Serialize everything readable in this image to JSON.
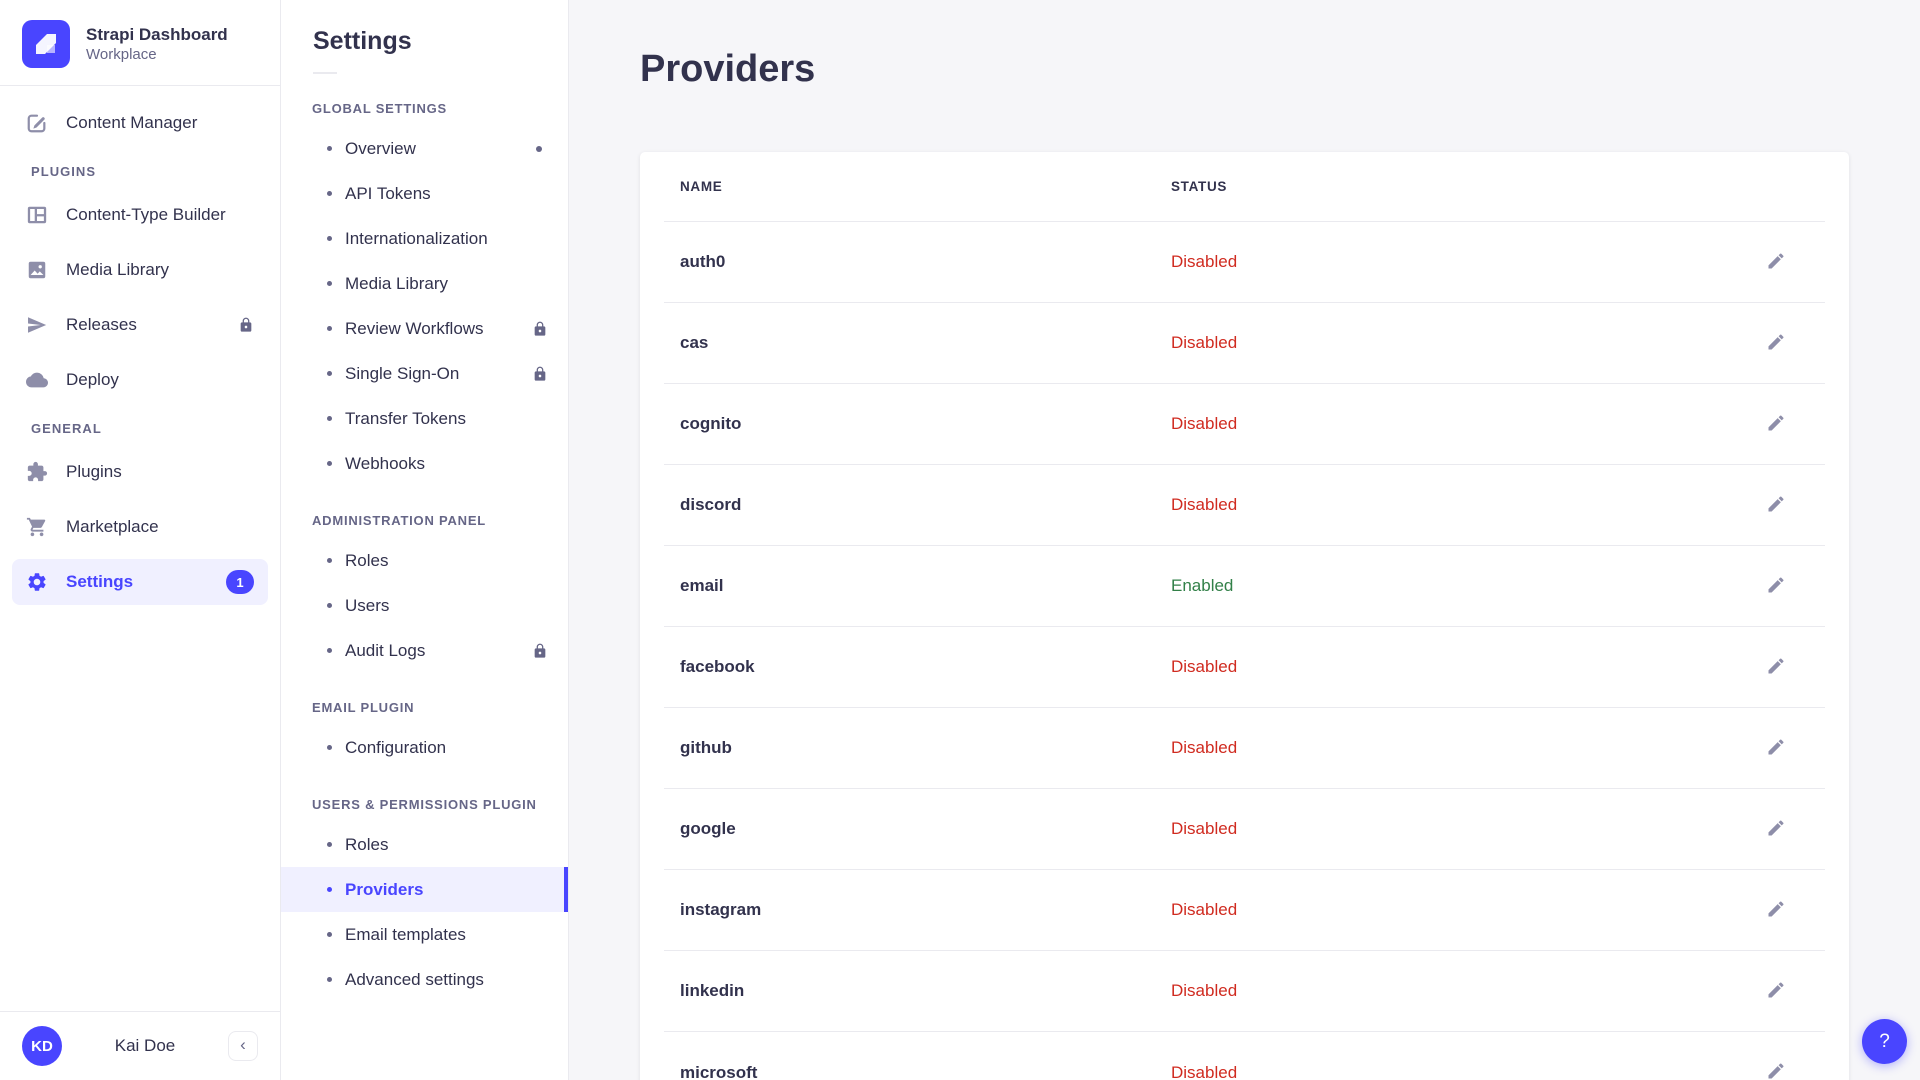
{
  "brand": {
    "title": "Strapi Dashboard",
    "subtitle": "Workplace"
  },
  "user": {
    "initials": "KD",
    "name": "Kai Doe",
    "collapse_icon": "chevron-left"
  },
  "colors": {
    "primary": "#4945ff",
    "primary_bg": "#f0f0ff",
    "success": "#328048",
    "danger": "#d02b20",
    "text": "#32324d",
    "muted": "#666687",
    "icon": "#8e8ea9",
    "border": "#eaeaef",
    "page_bg": "#f6f6f9"
  },
  "sidebar": {
    "sections": [
      {
        "label": "",
        "items": [
          {
            "label": "Content Manager",
            "icon": "content-manager-icon"
          }
        ]
      },
      {
        "label": "PLUGINS",
        "items": [
          {
            "label": "Content-Type Builder",
            "icon": "content-type-builder-icon"
          },
          {
            "label": "Media Library",
            "icon": "media-library-icon"
          },
          {
            "label": "Releases",
            "icon": "releases-icon",
            "locked": true
          },
          {
            "label": "Deploy",
            "icon": "deploy-icon"
          }
        ]
      },
      {
        "label": "GENERAL",
        "items": [
          {
            "label": "Plugins",
            "icon": "plugins-icon"
          },
          {
            "label": "Marketplace",
            "icon": "marketplace-icon"
          },
          {
            "label": "Settings",
            "icon": "settings-icon",
            "active": true,
            "badge": "1"
          }
        ]
      }
    ]
  },
  "subnav": {
    "title": "Settings",
    "sections": [
      {
        "label": "GLOBAL SETTINGS",
        "items": [
          {
            "label": "Overview",
            "notification": true
          },
          {
            "label": "API Tokens"
          },
          {
            "label": "Internationalization"
          },
          {
            "label": "Media Library"
          },
          {
            "label": "Review Workflows",
            "locked": true
          },
          {
            "label": "Single Sign-On",
            "locked": true
          },
          {
            "label": "Transfer Tokens"
          },
          {
            "label": "Webhooks"
          }
        ]
      },
      {
        "label": "ADMINISTRATION PANEL",
        "items": [
          {
            "label": "Roles"
          },
          {
            "label": "Users"
          },
          {
            "label": "Audit Logs",
            "locked": true
          }
        ]
      },
      {
        "label": "EMAIL PLUGIN",
        "items": [
          {
            "label": "Configuration"
          }
        ]
      },
      {
        "label": "USERS & PERMISSIONS PLUGIN",
        "items": [
          {
            "label": "Roles"
          },
          {
            "label": "Providers",
            "active": true
          },
          {
            "label": "Email templates"
          },
          {
            "label": "Advanced settings"
          }
        ]
      }
    ]
  },
  "main": {
    "title": "Providers",
    "help_label": "?",
    "table": {
      "columns": [
        "NAME",
        "STATUS"
      ],
      "rows": [
        {
          "name": "auth0",
          "status": "Disabled"
        },
        {
          "name": "cas",
          "status": "Disabled"
        },
        {
          "name": "cognito",
          "status": "Disabled"
        },
        {
          "name": "discord",
          "status": "Disabled"
        },
        {
          "name": "email",
          "status": "Enabled"
        },
        {
          "name": "facebook",
          "status": "Disabled"
        },
        {
          "name": "github",
          "status": "Disabled"
        },
        {
          "name": "google",
          "status": "Disabled"
        },
        {
          "name": "instagram",
          "status": "Disabled"
        },
        {
          "name": "linkedin",
          "status": "Disabled"
        },
        {
          "name": "microsoft",
          "status": "Disabled"
        }
      ]
    }
  }
}
